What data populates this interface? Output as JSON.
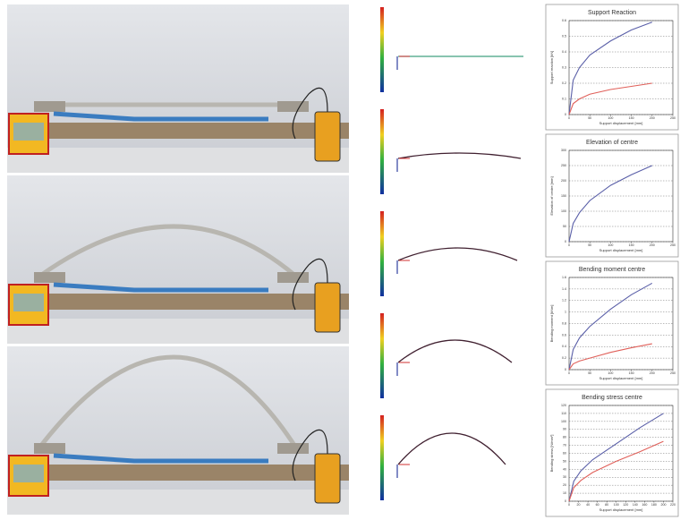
{
  "chart_data": [
    {
      "type": "line",
      "title": "Support Reaction",
      "xlabel": "Support displacement [mm]",
      "ylabel": "Support reaction [kN]",
      "x": [
        0,
        10,
        25,
        50,
        100,
        150,
        200
      ],
      "series": [
        {
          "name": "Horizontal",
          "color": "#5a5fa8",
          "values": [
            0,
            0.22,
            0.3,
            0.38,
            0.47,
            0.54,
            0.59
          ]
        },
        {
          "name": "Vertical",
          "color": "#e0605a",
          "values": [
            0,
            0.07,
            0.1,
            0.13,
            0.16,
            0.18,
            0.2
          ]
        }
      ],
      "xlim": [
        0,
        250
      ],
      "xticks": [
        0,
        50,
        100,
        150,
        200,
        250
      ],
      "ylim": [
        0,
        0.6
      ],
      "yticks": [
        0,
        0.1,
        0.2,
        0.3,
        0.4,
        0.5,
        0.6
      ],
      "grid": true
    },
    {
      "type": "line",
      "title": "Elevation of centre",
      "xlabel": "Support displacement [mm]",
      "ylabel": "Elevation of centre [mm]",
      "x": [
        0,
        10,
        25,
        50,
        100,
        150,
        200
      ],
      "series": [
        {
          "name": "Elevation",
          "color": "#5a5fa8",
          "values": [
            0,
            60,
            95,
            135,
            185,
            220,
            250
          ]
        }
      ],
      "xlim": [
        0,
        250
      ],
      "xticks": [
        0,
        50,
        100,
        150,
        200,
        250
      ],
      "ylim": [
        0,
        300
      ],
      "yticks": [
        0,
        50,
        100,
        150,
        200,
        250,
        300
      ],
      "grid": true
    },
    {
      "type": "line",
      "title": "Bending moment centre",
      "xlabel": "Support displacement [mm]",
      "ylabel": "Bending moment [kNm]",
      "x": [
        0,
        10,
        25,
        50,
        100,
        150,
        200
      ],
      "series": [
        {
          "name": "Simulation",
          "color": "#5a5fa8",
          "values": [
            0,
            0.35,
            0.55,
            0.75,
            1.05,
            1.3,
            1.5
          ]
        },
        {
          "name": "Measurement",
          "color": "#e0605a",
          "values": [
            0,
            0.1,
            0.15,
            0.2,
            0.3,
            0.38,
            0.45
          ]
        }
      ],
      "xlim": [
        0,
        250
      ],
      "xticks": [
        0,
        50,
        100,
        150,
        200,
        250
      ],
      "ylim": [
        0,
        1.6
      ],
      "yticks": [
        0,
        0.2,
        0.4,
        0.6,
        0.8,
        1,
        1.2,
        1.4,
        1.6
      ],
      "grid": true
    },
    {
      "type": "line",
      "title": "Bending stress centre",
      "xlabel": "Support displacement [mm]",
      "ylabel": "Bending stress [N/mm²]",
      "x": [
        0,
        10,
        25,
        50,
        100,
        150,
        200
      ],
      "series": [
        {
          "name": "Simulation",
          "color": "#5a5fa8",
          "values": [
            0,
            25,
            38,
            52,
            72,
            92,
            110
          ]
        },
        {
          "name": "Measurement",
          "color": "#e0605a",
          "values": [
            0,
            17,
            26,
            36,
            50,
            62,
            75
          ]
        }
      ],
      "xlim": [
        0,
        220
      ],
      "xticks": [
        0,
        20,
        40,
        60,
        80,
        100,
        120,
        140,
        160,
        180,
        200,
        220
      ],
      "ylim": [
        0,
        120
      ],
      "yticks": [
        0,
        10,
        20,
        30,
        40,
        50,
        60,
        70,
        80,
        90,
        100,
        110,
        120
      ],
      "grid": true
    }
  ]
}
